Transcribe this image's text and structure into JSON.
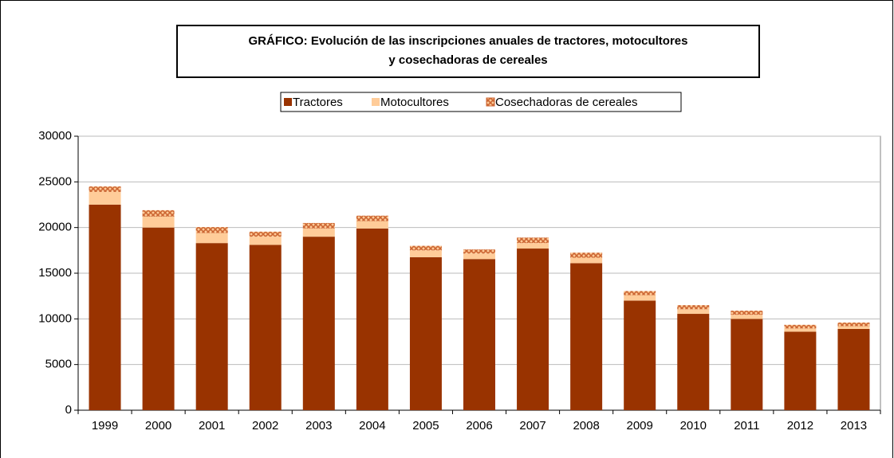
{
  "chart_data": {
    "type": "stacked_bar",
    "title": [
      "GRÁFICO: Evolución de las inscripciones anuales de tractores, motocultores",
      "y cosechadoras de cereales"
    ],
    "categories": [
      "1999",
      "2000",
      "2001",
      "2002",
      "2003",
      "2004",
      "2005",
      "2006",
      "2007",
      "2008",
      "2009",
      "2010",
      "2011",
      "2012",
      "2013"
    ],
    "series": [
      {
        "name": "Tractores",
        "color": "#993300",
        "values": [
          22500,
          20000,
          18300,
          18100,
          19000,
          19900,
          16750,
          16550,
          17700,
          16100,
          12000,
          10550,
          10000,
          8600,
          8900
        ]
      },
      {
        "name": "Motocultores",
        "color": "#ffcc99",
        "values": [
          1400,
          1200,
          1100,
          900,
          900,
          800,
          750,
          600,
          600,
          600,
          600,
          500,
          450,
          350,
          300
        ]
      },
      {
        "name": "Cosechadoras de cereales",
        "color": "#cc6633",
        "pattern": "hatch",
        "values": [
          600,
          700,
          650,
          550,
          600,
          600,
          500,
          450,
          600,
          550,
          450,
          450,
          450,
          400,
          400
        ]
      }
    ],
    "ylim": [
      0,
      30000
    ],
    "yticks": [
      0,
      5000,
      10000,
      15000,
      20000,
      25000,
      30000
    ],
    "grid": true
  }
}
